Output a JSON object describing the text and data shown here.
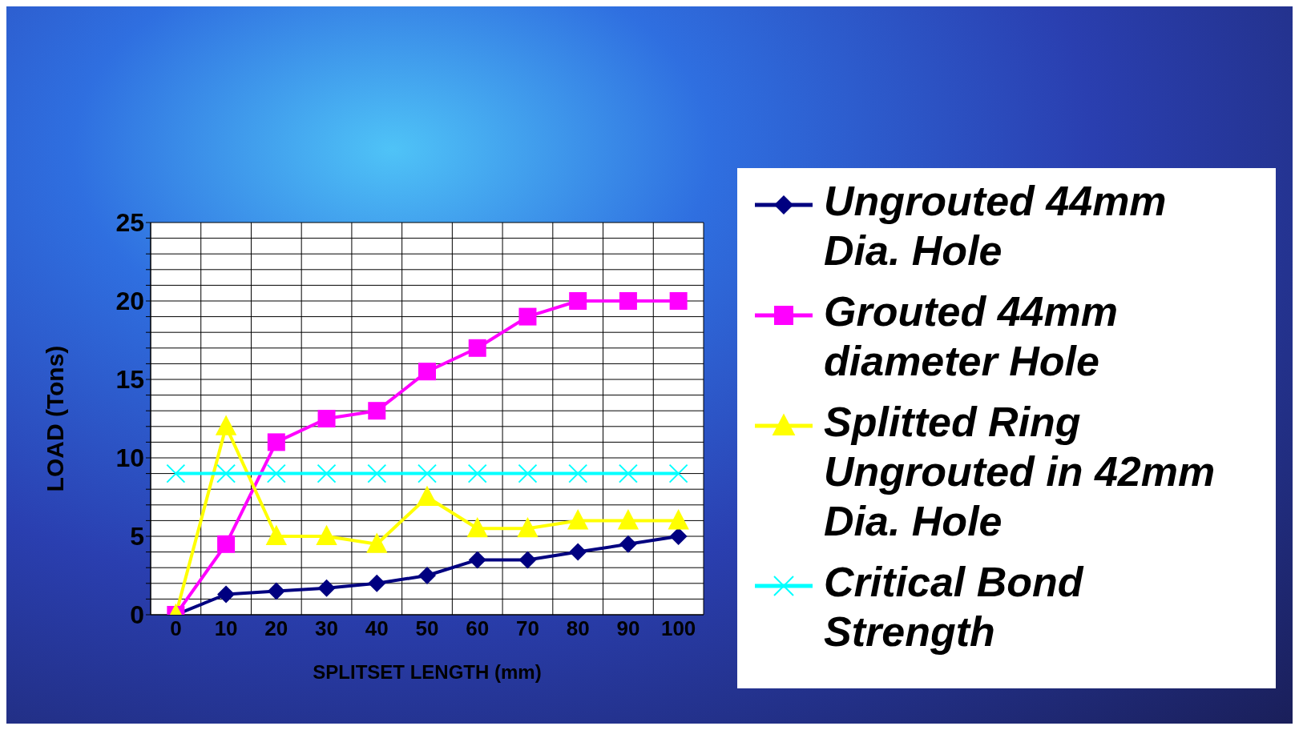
{
  "chart_data": {
    "type": "line",
    "xlabel": "SPLITSET LENGTH (mm)",
    "ylabel": "LOAD (Tons)",
    "categories": [
      "0",
      "10",
      "20",
      "30",
      "40",
      "50",
      "60",
      "70",
      "80",
      "90",
      "100"
    ],
    "series": [
      {
        "name": "Ungrouted 44mm Dia. Hole",
        "color": "#000080",
        "marker": "diamond",
        "values": [
          0,
          1.3,
          1.5,
          1.7,
          2,
          2.5,
          3.5,
          3.5,
          4,
          4.5,
          5
        ]
      },
      {
        "name": "Grouted 44mm diameter Hole",
        "color": "#ff00ff",
        "marker": "square",
        "values": [
          0,
          4.5,
          11,
          12.5,
          13,
          15.5,
          17,
          19,
          20,
          20,
          20
        ]
      },
      {
        "name": "Splitted Ring Ungrouted in 42mm Dia. Hole",
        "color": "#ffff00",
        "marker": "triangle",
        "values": [
          0,
          12,
          5,
          5,
          4.5,
          7.5,
          5.5,
          5.5,
          6,
          6,
          6
        ]
      },
      {
        "name": "Critical Bond Strength",
        "color": "#00ffff",
        "marker": "cross",
        "values": [
          9,
          9,
          9,
          9,
          9,
          9,
          9,
          9,
          9,
          9,
          9
        ]
      }
    ],
    "ylim": [
      0,
      25
    ],
    "yticks": [
      0,
      {
        "value": 1,
        "label": null
      },
      {
        "value": 2,
        "label": null
      },
      {
        "value": 3,
        "label": null
      },
      {
        "value": 4,
        "label": null
      },
      5,
      {
        "value": 6,
        "label": null
      },
      {
        "value": 7,
        "label": null
      },
      {
        "value": 8,
        "label": null
      },
      {
        "value": 9,
        "label": null
      },
      10,
      {
        "value": 11,
        "label": null
      },
      {
        "value": 12,
        "label": null
      },
      {
        "value": 13,
        "label": null
      },
      {
        "value": 14,
        "label": null
      },
      15,
      {
        "value": 16,
        "label": null
      },
      {
        "value": 17,
        "label": null
      },
      {
        "value": 18,
        "label": null
      },
      {
        "value": 19,
        "label": null
      },
      20,
      {
        "value": 21,
        "label": null
      },
      {
        "value": 22,
        "label": null
      },
      {
        "value": 23,
        "label": null
      },
      {
        "value": 24,
        "label": null
      },
      25
    ],
    "grid": true,
    "legend": "right",
    "line_style": "solid"
  }
}
